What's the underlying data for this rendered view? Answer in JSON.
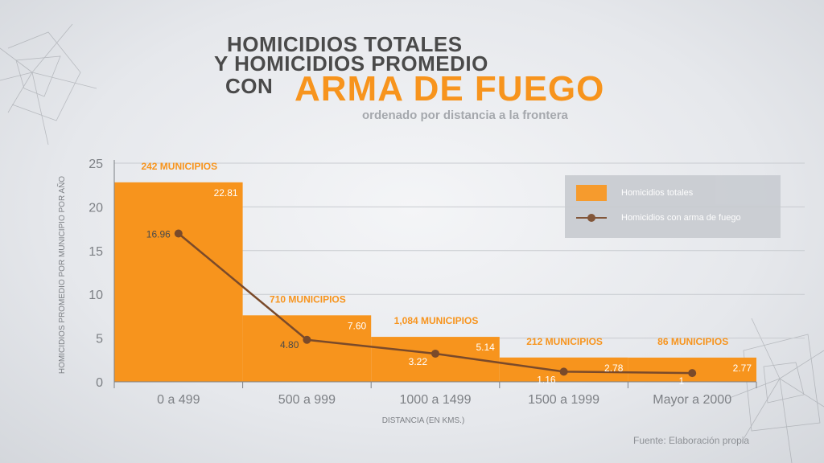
{
  "title": {
    "line1": "HOMICIDIOS TOTALES",
    "line2": "Y HOMICIDIOS PROMEDIO",
    "line3": "CON",
    "line4": "ARMA DE FUEGO",
    "subtitle": "ordenado por distancia a la frontera"
  },
  "source": "Fuente: Elaboración propia",
  "colors": {
    "bar": "#f7941d",
    "line": "#7a4a2a",
    "axis": "#7d8085",
    "grid": "#c8cbd0",
    "title": "#4a4a4a",
    "accent": "#f7941d"
  },
  "chart_data": {
    "type": "bar",
    "title": "HOMICIDIOS TOTALES Y HOMICIDIOS PROMEDIO CON ARMA DE FUEGO",
    "xlabel": "DISTANCIA (EN KMS.)",
    "ylabel": "HOMICIDIOS PROMEDIO POR MUNICIPIO POR AÑO",
    "ylim": [
      0,
      25
    ],
    "yticks": [
      "0",
      "5",
      "10",
      "15",
      "20",
      "25"
    ],
    "grid": true,
    "legend_position": "top-right",
    "categories": [
      "0 a 499",
      "500 a 999",
      "1000 a 1499",
      "1500 a 1999",
      "Mayor a 2000"
    ],
    "group_labels": [
      "242 MUNICIPIOS",
      "710 MUNICIPIOS",
      "1,084 MUNICIPIOS",
      "212 MUNICIPIOS",
      "86 MUNICIPIOS"
    ],
    "series": [
      {
        "name": "Homicidios totales",
        "type": "bar",
        "values": [
          22.81,
          7.6,
          5.14,
          2.78,
          2.77
        ],
        "labels": [
          "22.81",
          "7.60",
          "5.14",
          "2.78",
          "2.77"
        ]
      },
      {
        "name": "Homicidios con arma de fuego",
        "type": "line",
        "values": [
          16.96,
          4.8,
          3.22,
          1.16,
          1
        ],
        "labels": [
          "16.96",
          "4.80",
          "3.22",
          "1.16",
          "1"
        ]
      }
    ]
  }
}
